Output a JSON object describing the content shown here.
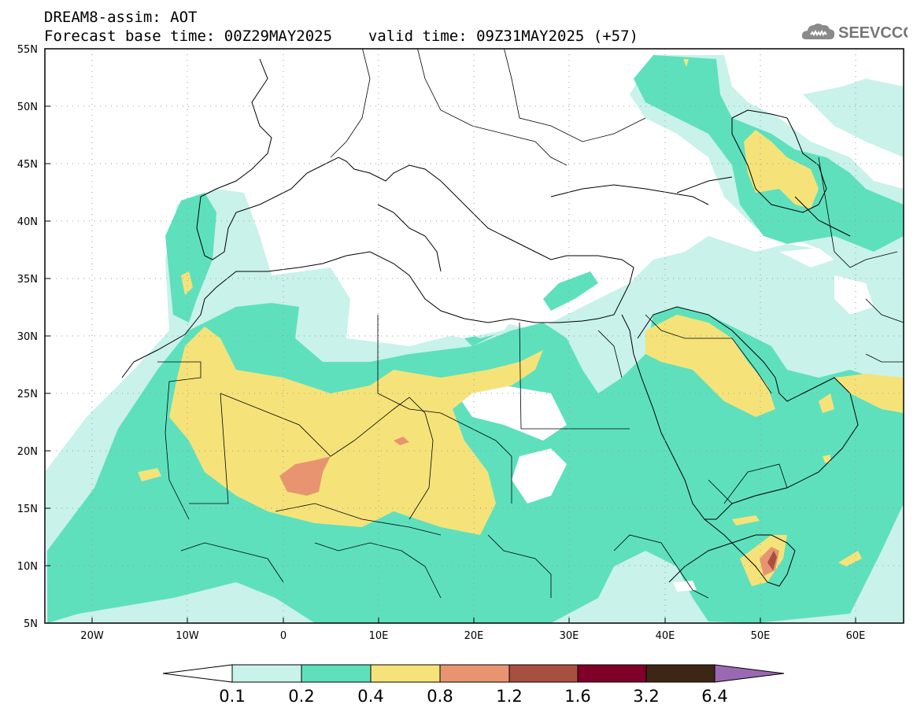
{
  "title": {
    "line1": "DREAM8-assim: AOT",
    "base_time": "Forecast base time: 00Z29MAY2025",
    "valid_time": "valid time: 09Z31MAY2025 (+57)"
  },
  "logo": {
    "text": "SEEVCCC",
    "icon": "cloud-icon"
  },
  "map": {
    "lat_labels": [
      "55N",
      "50N",
      "45N",
      "40N",
      "35N",
      "30N",
      "25N",
      "20N",
      "15N",
      "10N",
      "5N"
    ],
    "lon_labels": [
      "20W",
      "10W",
      "0",
      "10E",
      "20E",
      "30E",
      "40E",
      "50E",
      "60E"
    ],
    "lat_range": [
      5,
      55
    ],
    "lon_range": [
      -25,
      65
    ],
    "grid": "dotted"
  },
  "colorbar": {
    "labels": [
      "0.1",
      "0.2",
      "0.4",
      "0.8",
      "1.2",
      "1.6",
      "3.2",
      "6.4"
    ],
    "colors": [
      "#ffffff",
      "#c8f2ea",
      "#5ee0bd",
      "#f5e37a",
      "#e89470",
      "#a84f40",
      "#80002a",
      "#3e2614",
      "#9b69b4"
    ]
  }
}
